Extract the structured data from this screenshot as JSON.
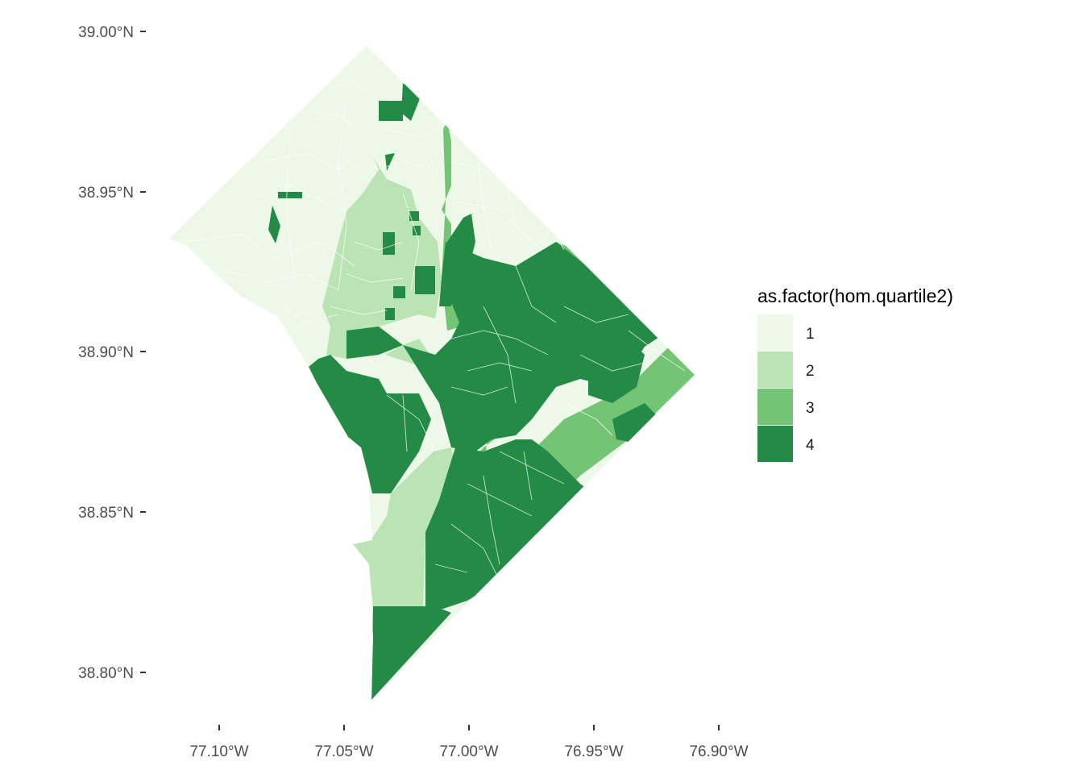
{
  "map": {
    "y_axis_labels": [
      "39.00°N",
      "38.95°N",
      "38.90°N",
      "38.85°N",
      "38.80°N"
    ],
    "x_axis_labels": [
      "77.10°W",
      "77.05°W",
      "77.00°W",
      "76.95°W",
      "76.90°W"
    ],
    "legend": {
      "title": "as.factor(hom.quartile2)",
      "items": [
        {
          "label": "1",
          "color": "#edf8e9"
        },
        {
          "label": "2",
          "color": "#bae4b3"
        },
        {
          "label": "3",
          "color": "#74c476"
        },
        {
          "label": "4",
          "color": "#238b45"
        }
      ]
    },
    "colors": {
      "q1": "#edf8e9",
      "q2": "#bae4b3",
      "q3": "#74c476",
      "q4": "#238b45",
      "boundary": "#ffffff",
      "tick": "#333333"
    }
  }
}
